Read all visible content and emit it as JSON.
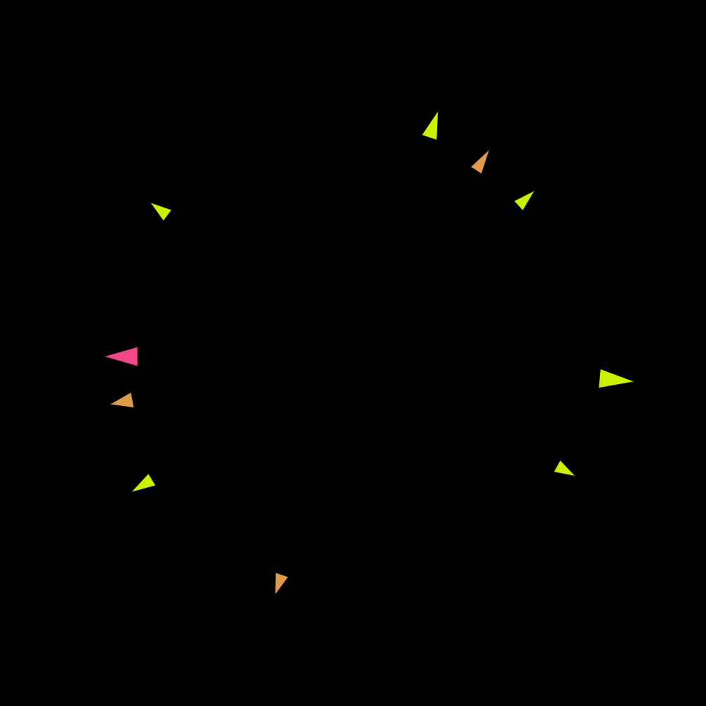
{
  "canvas": {
    "background": "#000000"
  },
  "artwork": {
    "kind": "voronoi-cell-tessellation",
    "outline_color": "#111111",
    "palette": {
      "lime": "#ccf000",
      "chartreuse": "#d8ec10",
      "olive_yellow": "#d9c238",
      "orange_tan": "#e09a4a",
      "salmon": "#ec6a72",
      "pink": "#f2458a",
      "magenta": "#fa14b6",
      "mint": "#66f2a2",
      "aqua": "#20f4d8",
      "light_green": "#a6f040"
    },
    "clusters": [
      {
        "type": "cyan",
        "center": [
          285,
          305
        ],
        "radius": 55
      },
      {
        "type": "cyan",
        "center": [
          435,
          295
        ],
        "radius": 38
      },
      {
        "type": "cyan",
        "center": [
          525,
          205
        ],
        "radius": 50
      },
      {
        "type": "cyan",
        "center": [
          565,
          355
        ],
        "radius": 48
      },
      {
        "type": "cyan",
        "center": [
          705,
          295
        ],
        "radius": 50
      },
      {
        "type": "cyan",
        "center": [
          400,
          425
        ],
        "radius": 52
      },
      {
        "type": "cyan",
        "center": [
          245,
          480
        ],
        "radius": 55
      },
      {
        "type": "cyan",
        "center": [
          665,
          450
        ],
        "radius": 45
      },
      {
        "type": "cyan",
        "center": [
          810,
          455
        ],
        "radius": 42
      },
      {
        "type": "cyan",
        "center": [
          540,
          520
        ],
        "radius": 50
      },
      {
        "type": "cyan",
        "center": [
          400,
          565
        ],
        "radius": 45
      },
      {
        "type": "cyan",
        "center": [
          605,
          640
        ],
        "radius": 50
      },
      {
        "type": "cyan",
        "center": [
          300,
          660
        ],
        "radius": 45
      },
      {
        "type": "cyan",
        "center": [
          460,
          685
        ],
        "radius": 50
      },
      {
        "type": "cyan",
        "center": [
          730,
          610
        ],
        "radius": 40
      },
      {
        "type": "cyan",
        "center": [
          590,
          780
        ],
        "radius": 50
      },
      {
        "type": "cyan",
        "center": [
          390,
          790
        ],
        "radius": 40
      },
      {
        "type": "pink",
        "center": [
          365,
          340
        ],
        "radius": 42
      },
      {
        "type": "pink",
        "center": [
          605,
          270
        ],
        "radius": 38
      },
      {
        "type": "pink",
        "center": [
          740,
          385
        ],
        "radius": 40
      },
      {
        "type": "pink",
        "center": [
          580,
          440
        ],
        "radius": 38
      },
      {
        "type": "pink",
        "center": [
          465,
          370
        ],
        "radius": 30
      },
      {
        "type": "pink",
        "center": [
          330,
          480
        ],
        "radius": 40
      },
      {
        "type": "pink",
        "center": [
          445,
          500
        ],
        "radius": 38
      },
      {
        "type": "pink",
        "center": [
          635,
          555
        ],
        "radius": 45
      },
      {
        "type": "pink",
        "center": [
          365,
          625
        ],
        "radius": 45
      },
      {
        "type": "pink",
        "center": [
          505,
          610
        ],
        "radius": 45
      },
      {
        "type": "pink",
        "center": [
          650,
          710
        ],
        "radius": 45
      },
      {
        "type": "pink",
        "center": [
          470,
          770
        ],
        "radius": 45
      },
      {
        "type": "pink",
        "center": [
          230,
          385
        ],
        "radius": 30
      },
      {
        "type": "pink",
        "center": [
          175,
          480
        ],
        "radius": 28
      },
      {
        "type": "pink",
        "center": [
          255,
          710
        ],
        "radius": 35
      },
      {
        "type": "orange",
        "center": [
          370,
          225
        ],
        "radius": 40
      },
      {
        "type": "orange",
        "center": [
          740,
          460
        ],
        "radius": 35
      },
      {
        "type": "orange",
        "center": [
          795,
          600
        ],
        "radius": 35
      },
      {
        "type": "orange",
        "center": [
          235,
          565
        ],
        "radius": 35
      },
      {
        "type": "orange",
        "center": [
          440,
          230
        ],
        "radius": 30
      }
    ]
  }
}
